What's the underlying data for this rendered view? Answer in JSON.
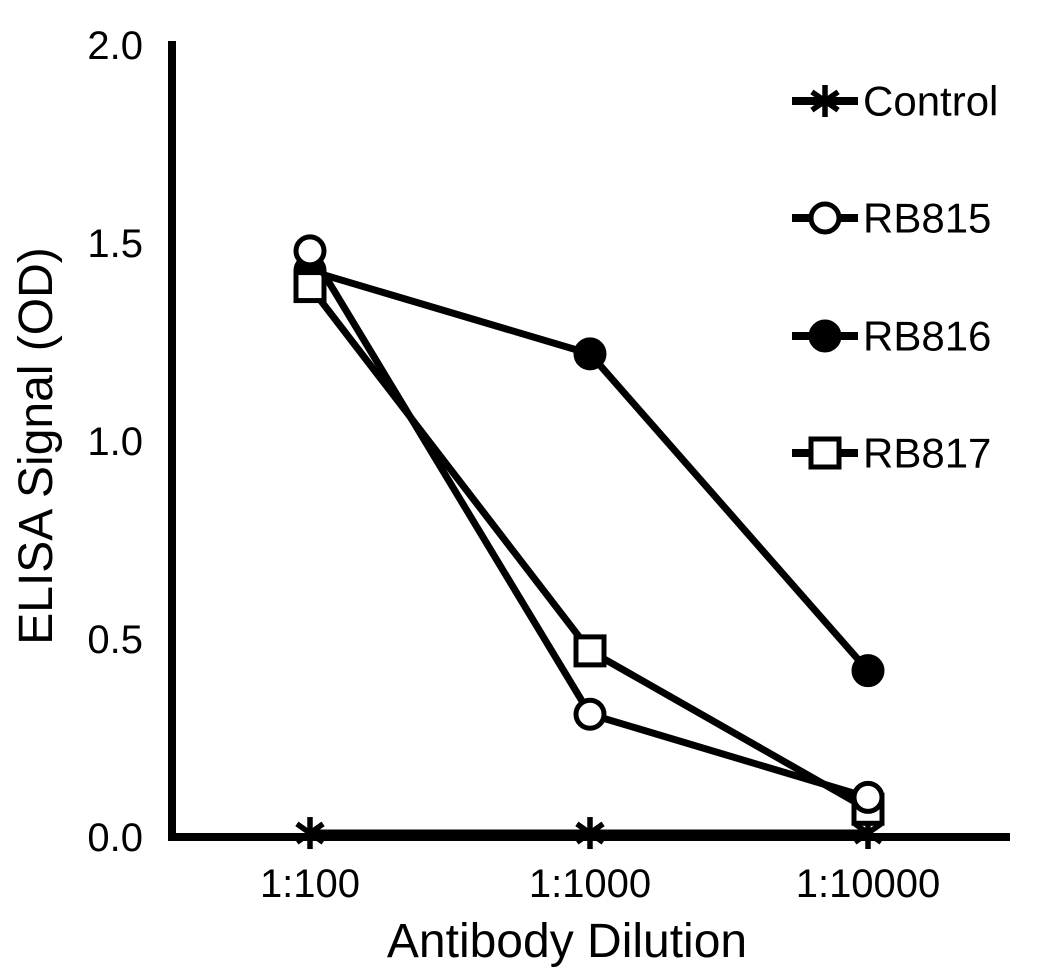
{
  "chart_data": {
    "type": "line",
    "title": "",
    "xlabel": "Antibody Dilution",
    "ylabel": "ELISA Signal (OD)",
    "categories": [
      "1:100",
      "1:1000",
      "1:10000"
    ],
    "y_ticks": [
      "0.0",
      "0.5",
      "1.0",
      "1.5",
      "2.0"
    ],
    "ylim": [
      0.0,
      2.0
    ],
    "grid": false,
    "legend_position": "top-right",
    "line_color": "#000000",
    "background_color": "#ffffff",
    "series": [
      {
        "name": "Control",
        "marker": "asterisk",
        "values": [
          0.01,
          0.01,
          0.01
        ]
      },
      {
        "name": "RB815",
        "marker": "circle-open",
        "values": [
          1.48,
          0.31,
          0.1
        ]
      },
      {
        "name": "RB816",
        "marker": "circle-filled",
        "values": [
          1.43,
          1.22,
          0.42
        ]
      },
      {
        "name": "RB817",
        "marker": "square-open",
        "values": [
          1.39,
          0.47,
          0.07
        ]
      }
    ]
  }
}
